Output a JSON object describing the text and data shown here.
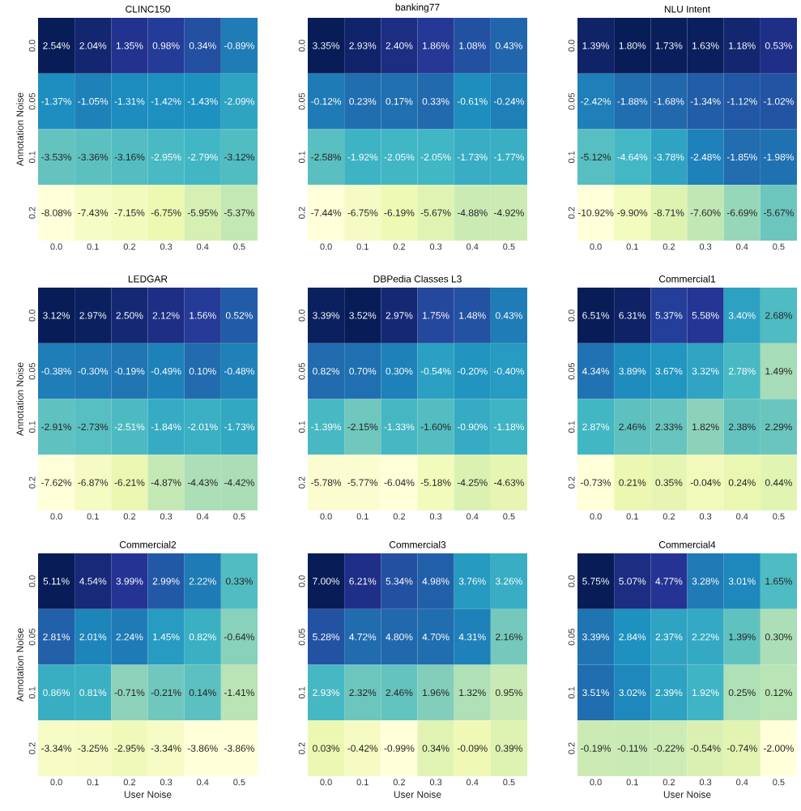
{
  "chart_data": [
    {
      "type": "heatmap",
      "title": "CLINC150",
      "ylabel": "Annotation Noise",
      "categories": [
        "0.0",
        "0.1",
        "0.2",
        "0.3",
        "0.4",
        "0.5"
      ],
      "y_categories": [
        "0.0",
        "0.05",
        "0.1",
        "0.2"
      ],
      "cells": [
        [
          2.54,
          2.04,
          1.35,
          0.98,
          0.34,
          -0.89
        ],
        [
          -1.37,
          -1.05,
          -1.31,
          -1.42,
          -1.43,
          -2.09
        ],
        [
          -3.53,
          -3.36,
          -3.16,
          -2.95,
          -2.79,
          -3.12
        ],
        [
          -8.08,
          -7.43,
          -7.15,
          -6.75,
          -5.95,
          -5.37
        ]
      ],
      "cell_labels": [
        [
          "2.54%",
          "2.04%",
          "1.35%",
          "0.98%",
          "0.34%",
          "-0.89%"
        ],
        [
          "-1.37%",
          "-1.05%",
          "-1.31%",
          "-1.42%",
          "-1.43%",
          "-2.09%"
        ],
        [
          "-3.53%",
          "-3.36%",
          "-3.16%",
          "-2.95%",
          "-2.79%",
          "-3.12%"
        ],
        [
          "-8.08%",
          "-7.43%",
          "-7.15%",
          "-6.75%",
          "-5.95%",
          "-5.37%"
        ]
      ]
    },
    {
      "type": "heatmap",
      "title": "banking77",
      "categories": [
        "0.0",
        "0.1",
        "0.2",
        "0.3",
        "0.4",
        "0.5"
      ],
      "y_categories": [
        "0.0",
        "0.05",
        "0.1",
        "0.2"
      ],
      "cells": [
        [
          3.35,
          2.93,
          2.4,
          1.86,
          1.08,
          0.43
        ],
        [
          -0.12,
          0.23,
          0.17,
          0.33,
          -0.61,
          -0.24
        ],
        [
          -2.58,
          -1.92,
          -2.05,
          -2.05,
          -1.73,
          -1.77
        ],
        [
          -7.44,
          -6.75,
          -6.19,
          -5.67,
          -4.88,
          -4.92
        ]
      ],
      "cell_labels": [
        [
          "3.35%",
          "2.93%",
          "2.40%",
          "1.86%",
          "1.08%",
          "0.43%"
        ],
        [
          "-0.12%",
          "0.23%",
          "0.17%",
          "0.33%",
          "-0.61%",
          "-0.24%"
        ],
        [
          "-2.58%",
          "-1.92%",
          "-2.05%",
          "-2.05%",
          "-1.73%",
          "-1.77%"
        ],
        [
          "-7.44%",
          "-6.75%",
          "-6.19%",
          "-5.67%",
          "-4.88%",
          "-4.92%"
        ]
      ]
    },
    {
      "type": "heatmap",
      "title": "NLU Intent",
      "categories": [
        "0.0",
        "0.1",
        "0.2",
        "0.3",
        "0.4",
        "0.5"
      ],
      "y_categories": [
        "0.0",
        "0.05",
        "0.1",
        "0.2"
      ],
      "cells": [
        [
          1.39,
          1.8,
          1.73,
          1.63,
          1.18,
          0.53
        ],
        [
          -2.42,
          -1.88,
          -1.68,
          -1.34,
          -1.12,
          -1.02
        ],
        [
          -5.12,
          -4.64,
          -3.78,
          -2.48,
          -1.85,
          -1.98
        ],
        [
          -10.92,
          -9.9,
          -8.71,
          -7.6,
          -6.69,
          -5.67
        ]
      ],
      "cell_labels": [
        [
          "1.39%",
          "1.80%",
          "1.73%",
          "1.63%",
          "1.18%",
          "0.53%"
        ],
        [
          "-2.42%",
          "-1.88%",
          "-1.68%",
          "-1.34%",
          "-1.12%",
          "-1.02%"
        ],
        [
          "-5.12%",
          "-4.64%",
          "-3.78%",
          "-2.48%",
          "-1.85%",
          "-1.98%"
        ],
        [
          "-10.92%",
          "-9.90%",
          "-8.71%",
          "-7.60%",
          "-6.69%",
          "-5.67%"
        ]
      ]
    },
    {
      "type": "heatmap",
      "title": "LEDGAR",
      "ylabel": "Annotation Noise",
      "categories": [
        "0.0",
        "0.1",
        "0.2",
        "0.3",
        "0.4",
        "0.5"
      ],
      "y_categories": [
        "0.0",
        "0.05",
        "0.1",
        "0.2"
      ],
      "cells": [
        [
          3.12,
          2.97,
          2.5,
          2.12,
          1.56,
          0.52
        ],
        [
          -0.38,
          -0.3,
          -0.19,
          -0.49,
          0.1,
          -0.48
        ],
        [
          -2.91,
          -2.73,
          -2.51,
          -1.84,
          -2.01,
          -1.73
        ],
        [
          -7.62,
          -6.87,
          -6.21,
          -4.87,
          -4.43,
          -4.42
        ]
      ],
      "cell_labels": [
        [
          "3.12%",
          "2.97%",
          "2.50%",
          "2.12%",
          "1.56%",
          "0.52%"
        ],
        [
          "-0.38%",
          "-0.30%",
          "-0.19%",
          "-0.49%",
          "0.10%",
          "-0.48%"
        ],
        [
          "-2.91%",
          "-2.73%",
          "-2.51%",
          "-1.84%",
          "-2.01%",
          "-1.73%"
        ],
        [
          "-7.62%",
          "-6.87%",
          "-6.21%",
          "-4.87%",
          "-4.43%",
          "-4.42%"
        ]
      ]
    },
    {
      "type": "heatmap",
      "title": "DBPedia Classes L3",
      "categories": [
        "0.0",
        "0.1",
        "0.2",
        "0.3",
        "0.4",
        "0.5"
      ],
      "y_categories": [
        "0.0",
        "0.05",
        "0.1",
        "0.2"
      ],
      "cells": [
        [
          3.39,
          3.52,
          2.97,
          1.75,
          1.48,
          0.43
        ],
        [
          0.82,
          0.7,
          0.3,
          -0.54,
          -0.2,
          -0.4
        ],
        [
          -1.39,
          -2.15,
          -1.33,
          -1.6,
          -0.9,
          -1.18
        ],
        [
          -5.78,
          -5.77,
          -6.04,
          -5.18,
          -4.25,
          -4.63
        ]
      ],
      "cell_labels": [
        [
          "3.39%",
          "3.52%",
          "2.97%",
          "1.75%",
          "1.48%",
          "0.43%"
        ],
        [
          "0.82%",
          "0.70%",
          "0.30%",
          "-0.54%",
          "-0.20%",
          "-0.40%"
        ],
        [
          "-1.39%",
          "-2.15%",
          "-1.33%",
          "-1.60%",
          "-0.90%",
          "-1.18%"
        ],
        [
          "-5.78%",
          "-5.77%",
          "-6.04%",
          "-5.18%",
          "-4.25%",
          "-4.63%"
        ]
      ]
    },
    {
      "type": "heatmap",
      "title": "Commercial1",
      "categories": [
        "0.0",
        "0.1",
        "0.2",
        "0.3",
        "0.4",
        "0.5"
      ],
      "y_categories": [
        "0.0",
        "0.05",
        "0.1",
        "0.2"
      ],
      "cells": [
        [
          6.51,
          6.31,
          5.37,
          5.58,
          3.4,
          2.68
        ],
        [
          4.34,
          3.89,
          3.67,
          3.32,
          2.78,
          1.49
        ],
        [
          2.87,
          2.46,
          2.33,
          1.82,
          2.38,
          2.29
        ],
        [
          -0.73,
          0.21,
          0.35,
          -0.04,
          0.24,
          0.44
        ]
      ],
      "cell_labels": [
        [
          "6.51%",
          "6.31%",
          "5.37%",
          "5.58%",
          "3.40%",
          "2.68%"
        ],
        [
          "4.34%",
          "3.89%",
          "3.67%",
          "3.32%",
          "2.78%",
          "1.49%"
        ],
        [
          "2.87%",
          "2.46%",
          "2.33%",
          "1.82%",
          "2.38%",
          "2.29%"
        ],
        [
          "-0.73%",
          "0.21%",
          "0.35%",
          "-0.04%",
          "0.24%",
          "0.44%"
        ]
      ]
    },
    {
      "type": "heatmap",
      "title": "Commercial2",
      "xlabel": "User Noise",
      "ylabel": "Annotation Noise",
      "categories": [
        "0.0",
        "0.1",
        "0.2",
        "0.3",
        "0.4",
        "0.5"
      ],
      "y_categories": [
        "0.0",
        "0.05",
        "0.1",
        "0.2"
      ],
      "cells": [
        [
          5.11,
          4.54,
          3.99,
          2.99,
          2.22,
          0.33
        ],
        [
          2.81,
          2.01,
          2.24,
          1.45,
          0.82,
          -0.64
        ],
        [
          0.86,
          0.81,
          -0.71,
          -0.21,
          0.14,
          -1.41
        ],
        [
          -3.34,
          -3.25,
          -2.95,
          -3.34,
          -3.86,
          -3.86
        ]
      ],
      "cell_labels": [
        [
          "5.11%",
          "4.54%",
          "3.99%",
          "2.99%",
          "2.22%",
          "0.33%"
        ],
        [
          "2.81%",
          "2.01%",
          "2.24%",
          "1.45%",
          "0.82%",
          "-0.64%"
        ],
        [
          "0.86%",
          "0.81%",
          "-0.71%",
          "-0.21%",
          "0.14%",
          "-1.41%"
        ],
        [
          "-3.34%",
          "-3.25%",
          "-2.95%",
          "-3.34%",
          "-3.86%",
          "-3.86%"
        ]
      ]
    },
    {
      "type": "heatmap",
      "title": "Commercial3",
      "xlabel": "User Noise",
      "categories": [
        "0.0",
        "0.1",
        "0.2",
        "0.3",
        "0.4",
        "0.5"
      ],
      "y_categories": [
        "0.0",
        "0.05",
        "0.1",
        "0.2"
      ],
      "cells": [
        [
          7.0,
          6.21,
          5.34,
          4.98,
          3.76,
          3.26
        ],
        [
          5.28,
          4.72,
          4.8,
          4.7,
          4.31,
          2.16
        ],
        [
          2.93,
          2.32,
          2.46,
          1.96,
          1.32,
          0.95
        ],
        [
          0.03,
          -0.42,
          -0.99,
          0.34,
          -0.09,
          0.39
        ]
      ],
      "cell_labels": [
        [
          "7.00%",
          "6.21%",
          "5.34%",
          "4.98%",
          "3.76%",
          "3.26%"
        ],
        [
          "5.28%",
          "4.72%",
          "4.80%",
          "4.70%",
          "4.31%",
          "2.16%"
        ],
        [
          "2.93%",
          "2.32%",
          "2.46%",
          "1.96%",
          "1.32%",
          "0.95%"
        ],
        [
          "0.03%",
          "-0.42%",
          "-0.99%",
          "0.34%",
          "-0.09%",
          "0.39%"
        ]
      ]
    },
    {
      "type": "heatmap",
      "title": "Commercial4",
      "xlabel": "User Noise",
      "categories": [
        "0.0",
        "0.1",
        "0.2",
        "0.3",
        "0.4",
        "0.5"
      ],
      "y_categories": [
        "0.0",
        "0.05",
        "0.1",
        "0.2"
      ],
      "cells": [
        [
          5.75,
          5.07,
          4.77,
          3.28,
          3.01,
          1.65
        ],
        [
          3.39,
          2.84,
          2.37,
          2.22,
          1.39,
          0.3
        ],
        [
          3.51,
          3.02,
          2.39,
          1.92,
          0.25,
          0.12
        ],
        [
          -0.19,
          -0.11,
          -0.22,
          -0.54,
          -0.74,
          -2.0
        ]
      ],
      "cell_labels": [
        [
          "5.75%",
          "5.07%",
          "4.77%",
          "3.28%",
          "3.01%",
          "1.65%"
        ],
        [
          "3.39%",
          "2.84%",
          "2.37%",
          "2.22%",
          "1.39%",
          "0.30%"
        ],
        [
          "3.51%",
          "3.02%",
          "2.39%",
          "1.92%",
          "0.25%",
          "0.12%"
        ],
        [
          "-0.19%",
          "-0.11%",
          "-0.22%",
          "-0.54%",
          "-0.74%",
          "-2.00%"
        ]
      ]
    }
  ]
}
